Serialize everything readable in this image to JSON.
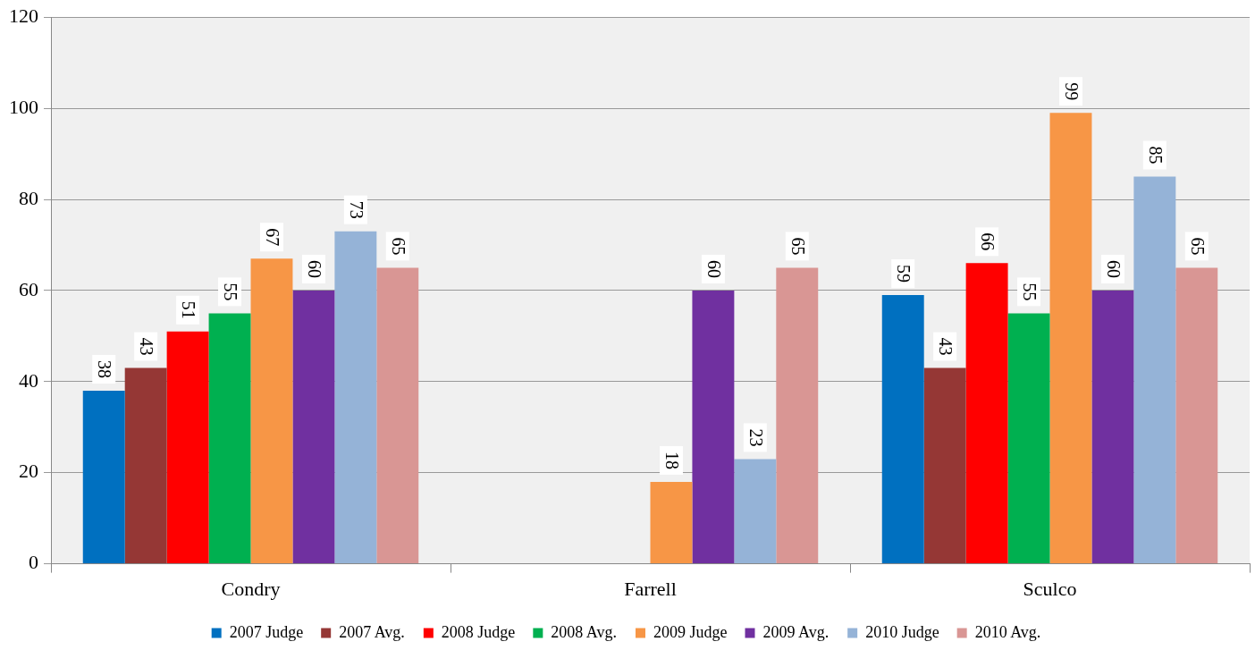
{
  "chart_data": {
    "type": "bar",
    "categories": [
      "Condry",
      "Farrell",
      "Sculco"
    ],
    "series": [
      {
        "name": "2007 Judge",
        "color": "#0070c0",
        "values": [
          38,
          null,
          59
        ]
      },
      {
        "name": "2007 Avg.",
        "color": "#953735",
        "values": [
          43,
          null,
          43
        ]
      },
      {
        "name": "2008 Judge",
        "color": "#ff0000",
        "values": [
          51,
          null,
          66
        ]
      },
      {
        "name": "2008 Avg.",
        "color": "#00b050",
        "values": [
          55,
          null,
          55
        ]
      },
      {
        "name": "2009 Judge",
        "color": "#f79646",
        "values": [
          67,
          18,
          99
        ]
      },
      {
        "name": "2009 Avg.",
        "color": "#7030a0",
        "values": [
          60,
          60,
          60
        ]
      },
      {
        "name": "2010 Judge",
        "color": "#95b3d7",
        "values": [
          73,
          23,
          85
        ]
      },
      {
        "name": "2010 Avg.",
        "color": "#d99694",
        "values": [
          65,
          65,
          65
        ]
      }
    ],
    "ylim": [
      0,
      120
    ],
    "yticks": [
      0,
      20,
      40,
      60,
      80,
      100,
      120
    ],
    "grid": "y",
    "legend": "bottom",
    "data_labels": true
  }
}
